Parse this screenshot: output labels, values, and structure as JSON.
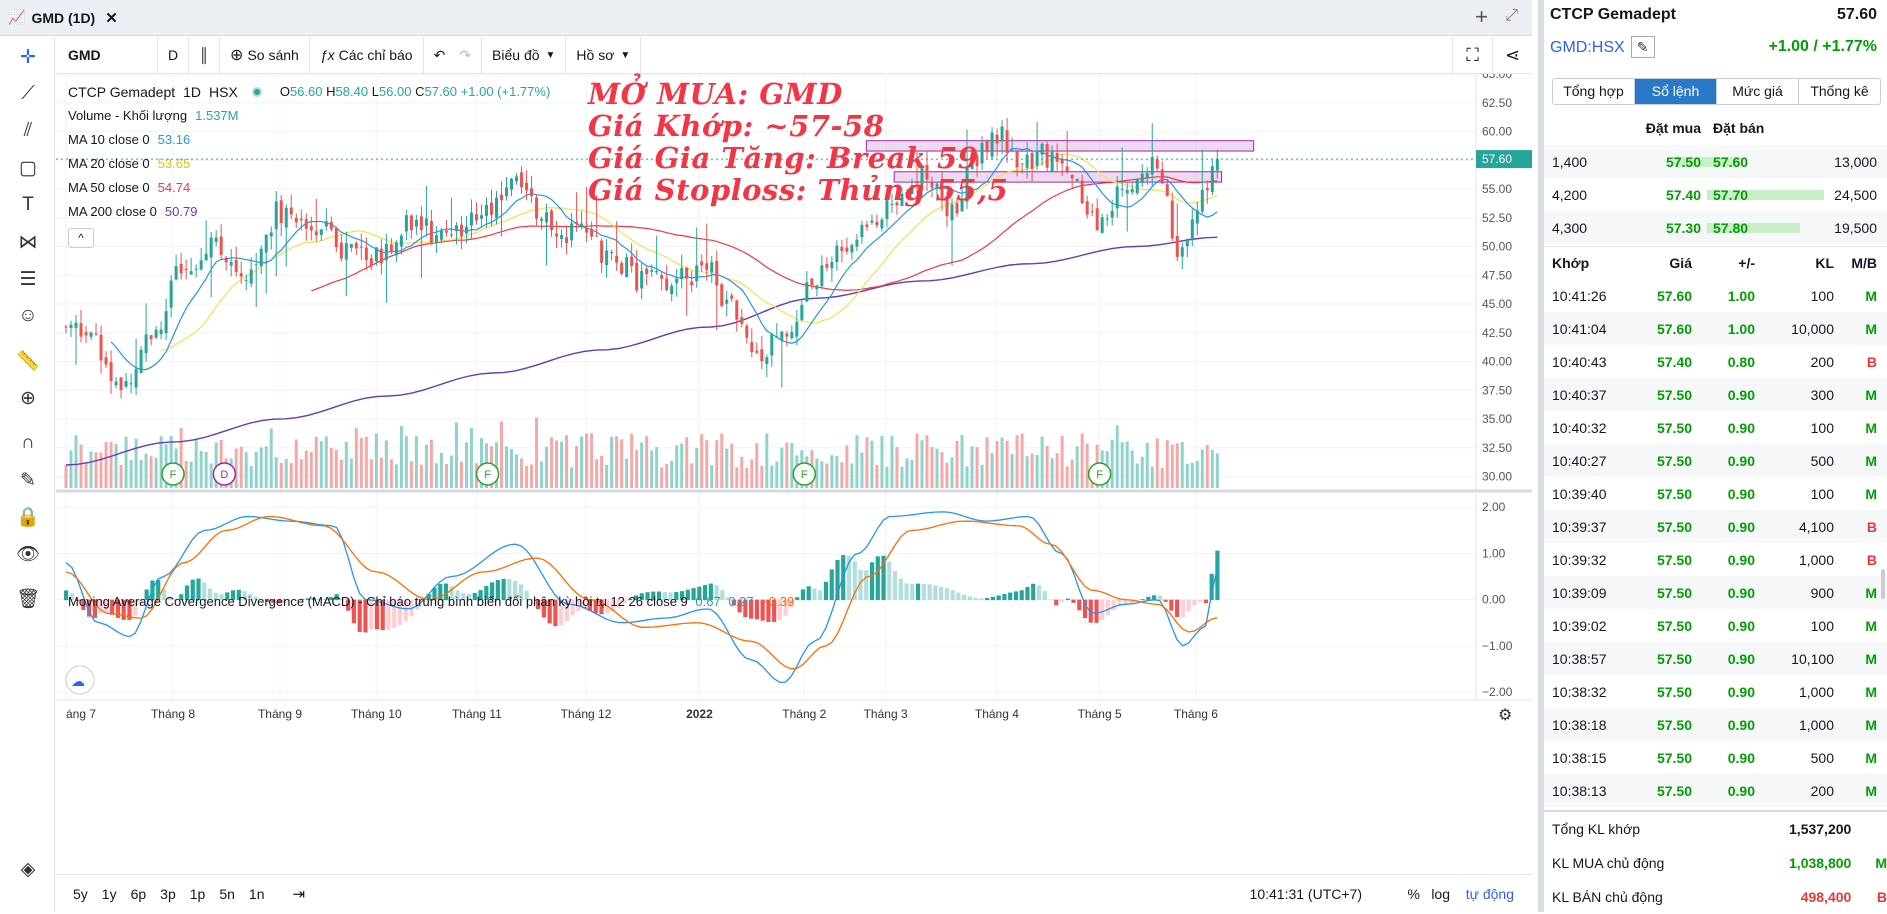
{
  "window": {
    "title": "GMD (1D)"
  },
  "toolbar": {
    "symbol": "GMD",
    "interval": "D",
    "compare": "So sánh",
    "indicators": "Các chỉ báo",
    "chart_type": "Biểu đồ",
    "profile": "Hồ sơ"
  },
  "legend": {
    "name": "CTCP Gemadept",
    "interval": "1D",
    "exchange": "HSX",
    "o_label": "O",
    "o": "56.60",
    "h_label": "H",
    "h": "58.40",
    "l_label": "L",
    "l": "56.00",
    "c_label": "C",
    "c": "57.60",
    "change": "+1.00 (+1.77%)",
    "volume_label": "Volume - Khối lượng",
    "volume": "1.537M",
    "ma": [
      {
        "label": "MA 10 close 0",
        "value": "53.16",
        "color": "#2196f3"
      },
      {
        "label": "MA 20 close 0",
        "value": "53.65",
        "color": "#f5d300"
      },
      {
        "label": "MA 50 close 0",
        "value": "54.74",
        "color": "#f23645"
      },
      {
        "label": "MA 200 close 0",
        "value": "50.79",
        "color": "#673ab7"
      }
    ],
    "collapse": "^"
  },
  "annotation": {
    "l1": "MỞ MUA: GMD",
    "l2": "Giá Khớp: ~57-58",
    "l3": "Giá Gia Tăng: Break 59",
    "l4": "Giá Stoploss: Thủng 55,5"
  },
  "macd": {
    "label": "Moving Average Covergence Divergence (MACD) - Chỉ báo trung bình biến đổi phân kỳ hội tụ 12 26 close 9",
    "v1": "0.67",
    "v2": "0.27",
    "v3": "−0.39"
  },
  "bottom": {
    "ranges": [
      "5y",
      "1y",
      "6p",
      "3p",
      "1p",
      "5n",
      "1n"
    ],
    "clock": "10:41:31 (UTC+7)",
    "pct": "%",
    "log": "log",
    "auto": "tự động"
  },
  "panel": {
    "title": "CTCP Gemadept",
    "price": "57.60",
    "symbol": "GMD:HSX",
    "change": "+1.00 / +1.77%",
    "tabs": [
      "Tổng hợp",
      "Sổ lệnh",
      "Mức giá",
      "Thống kê"
    ],
    "ob_head": {
      "bid": "Đặt mua",
      "ask": "Đặt bán"
    },
    "orderbook": [
      {
        "bv": "1,400",
        "bp": "57.50",
        "ap": "57.60",
        "av": "13,000",
        "bw": 0.35,
        "aw": 0.22
      },
      {
        "bv": "4,200",
        "bp": "57.40",
        "ap": "57.70",
        "av": "24,500",
        "bw": 0.0,
        "aw": 0.78
      },
      {
        "bv": "4,300",
        "bp": "57.30",
        "ap": "57.80",
        "av": "19,500",
        "bw": 0.0,
        "aw": 0.62
      }
    ],
    "trade_head": {
      "t": "Khớp",
      "p": "Giá",
      "c": "+/-",
      "v": "KL",
      "s": "M/B"
    },
    "trades": [
      {
        "t": "10:41:26",
        "p": "57.60",
        "c": "1.00",
        "v": "100",
        "s": "M"
      },
      {
        "t": "10:41:04",
        "p": "57.60",
        "c": "1.00",
        "v": "10,000",
        "s": "M"
      },
      {
        "t": "10:40:43",
        "p": "57.40",
        "c": "0.80",
        "v": "200",
        "s": "B"
      },
      {
        "t": "10:40:37",
        "p": "57.50",
        "c": "0.90",
        "v": "300",
        "s": "M"
      },
      {
        "t": "10:40:32",
        "p": "57.50",
        "c": "0.90",
        "v": "100",
        "s": "M"
      },
      {
        "t": "10:40:27",
        "p": "57.50",
        "c": "0.90",
        "v": "500",
        "s": "M"
      },
      {
        "t": "10:39:40",
        "p": "57.50",
        "c": "0.90",
        "v": "100",
        "s": "M"
      },
      {
        "t": "10:39:37",
        "p": "57.50",
        "c": "0.90",
        "v": "4,100",
        "s": "B"
      },
      {
        "t": "10:39:32",
        "p": "57.50",
        "c": "0.90",
        "v": "1,000",
        "s": "B"
      },
      {
        "t": "10:39:09",
        "p": "57.50",
        "c": "0.90",
        "v": "900",
        "s": "M"
      },
      {
        "t": "10:39:02",
        "p": "57.50",
        "c": "0.90",
        "v": "100",
        "s": "M"
      },
      {
        "t": "10:38:57",
        "p": "57.50",
        "c": "0.90",
        "v": "10,100",
        "s": "M"
      },
      {
        "t": "10:38:32",
        "p": "57.50",
        "c": "0.90",
        "v": "1,000",
        "s": "M"
      },
      {
        "t": "10:38:18",
        "p": "57.50",
        "c": "0.90",
        "v": "1,000",
        "s": "M"
      },
      {
        "t": "10:38:15",
        "p": "57.50",
        "c": "0.90",
        "v": "500",
        "s": "M"
      },
      {
        "t": "10:38:13",
        "p": "57.50",
        "c": "0.90",
        "v": "200",
        "s": "M"
      }
    ],
    "summary": [
      {
        "label": "Tổng KL khớp",
        "value": "1,537,200",
        "mb": "",
        "color": "#131722"
      },
      {
        "label": "KL MUA chủ động",
        "value": "1,038,800",
        "mb": "M",
        "color": "#00a000"
      },
      {
        "label": "KL BÁN chủ động",
        "value": "498,400",
        "mb": "B",
        "color": "#e53935"
      }
    ]
  },
  "chart_data": {
    "type": "candlestick",
    "price_ticks": [
      "65.00",
      "62.50",
      "60.00",
      "57.50",
      "55.00",
      "52.50",
      "50.00",
      "47.50",
      "45.00",
      "42.50",
      "40.00",
      "37.50",
      "35.00",
      "32.50",
      "30.00"
    ],
    "price_range": [
      29,
      65
    ],
    "last_price": "57.60",
    "macd_ticks": [
      "2.00",
      "1.00",
      "0.00",
      "−1.00",
      "−2.00"
    ],
    "macd_range": [
      -2.15,
      2.2
    ],
    "x_labels": [
      "áng 7",
      "Tháng 8",
      "Tháng 9",
      "Tháng 10",
      "Tháng 11",
      "Tháng 12",
      "2022",
      "Tháng 2",
      "Tháng 3",
      "Tháng 4",
      "Tháng 5",
      "Tháng 6"
    ],
    "x_label_pos": [
      0,
      0.5,
      1.0,
      1.45,
      1.92,
      2.43,
      2.96,
      3.45,
      3.83,
      4.35,
      4.83,
      5.28
    ],
    "events": [
      {
        "m": 0.5,
        "label": "F"
      },
      {
        "m": 0.74,
        "label": "D"
      },
      {
        "m": 1.97,
        "label": "F"
      },
      {
        "m": 3.45,
        "label": "F"
      },
      {
        "m": 4.83,
        "label": "F"
      }
    ],
    "zones": [
      {
        "m1": 3.74,
        "m2": 5.55,
        "low": 58.3,
        "high": 59.2
      },
      {
        "m1": 3.87,
        "m2": 5.4,
        "low": 55.6,
        "high": 56.5
      }
    ],
    "close_anchors": [
      [
        0,
        43
      ],
      [
        0.1,
        43
      ],
      [
        0.25,
        38
      ],
      [
        0.4,
        42
      ],
      [
        0.55,
        48
      ],
      [
        0.7,
        50
      ],
      [
        0.85,
        48
      ],
      [
        1.0,
        53
      ],
      [
        1.15,
        52
      ],
      [
        1.3,
        50
      ],
      [
        1.45,
        49
      ],
      [
        1.6,
        52
      ],
      [
        1.75,
        51
      ],
      [
        1.9,
        52
      ],
      [
        2.1,
        56
      ],
      [
        2.25,
        52
      ],
      [
        2.4,
        51
      ],
      [
        2.55,
        49
      ],
      [
        2.7,
        47
      ],
      [
        2.85,
        47
      ],
      [
        3.0,
        48
      ],
      [
        3.1,
        45
      ],
      [
        3.25,
        41
      ],
      [
        3.35,
        42
      ],
      [
        3.5,
        47
      ],
      [
        3.6,
        49
      ],
      [
        3.75,
        52
      ],
      [
        3.85,
        53
      ],
      [
        4.0,
        56
      ],
      [
        4.15,
        53
      ],
      [
        4.25,
        58
      ],
      [
        4.35,
        60
      ],
      [
        4.45,
        57
      ],
      [
        4.55,
        58
      ],
      [
        4.7,
        56
      ],
      [
        4.8,
        52
      ],
      [
        4.95,
        55
      ],
      [
        5.1,
        57
      ],
      [
        5.2,
        50
      ],
      [
        5.3,
        54
      ],
      [
        5.38,
        57.6
      ]
    ],
    "ma200_anchors": [
      [
        0,
        31
      ],
      [
        0.5,
        33
      ],
      [
        1.0,
        35
      ],
      [
        1.5,
        37
      ],
      [
        2.0,
        39
      ],
      [
        2.5,
        41
      ],
      [
        3.0,
        43
      ],
      [
        3.5,
        45.5
      ],
      [
        4.0,
        47
      ],
      [
        4.5,
        48.5
      ],
      [
        5.0,
        50
      ],
      [
        5.38,
        50.8
      ]
    ],
    "macd_anchors": [
      [
        0,
        0.8
      ],
      [
        0.15,
        -0.5
      ],
      [
        0.3,
        -0.8
      ],
      [
        0.45,
        0.5
      ],
      [
        0.65,
        1.5
      ],
      [
        0.85,
        1.8
      ],
      [
        1.05,
        1.7
      ],
      [
        1.25,
        1.6
      ],
      [
        1.4,
        0.0
      ],
      [
        1.6,
        -0.2
      ],
      [
        1.8,
        0.5
      ],
      [
        2.1,
        1.2
      ],
      [
        2.35,
        -0.1
      ],
      [
        2.6,
        -0.5
      ],
      [
        2.8,
        -0.4
      ],
      [
        3.0,
        -0.2
      ],
      [
        3.2,
        -1.3
      ],
      [
        3.35,
        -1.8
      ],
      [
        3.5,
        -0.9
      ],
      [
        3.7,
        1.0
      ],
      [
        3.85,
        1.8
      ],
      [
        4.1,
        1.9
      ],
      [
        4.3,
        1.7
      ],
      [
        4.5,
        1.8
      ],
      [
        4.65,
        1.0
      ],
      [
        4.8,
        -0.3
      ],
      [
        4.95,
        -0.1
      ],
      [
        5.1,
        0.0
      ],
      [
        5.22,
        -1.0
      ],
      [
        5.32,
        -0.6
      ],
      [
        5.38,
        0.67
      ]
    ],
    "signal_anchors": [
      [
        0,
        0.6
      ],
      [
        0.2,
        -0.3
      ],
      [
        0.35,
        -0.4
      ],
      [
        0.55,
        0.8
      ],
      [
        0.75,
        1.5
      ],
      [
        0.95,
        1.8
      ],
      [
        1.2,
        1.6
      ],
      [
        1.45,
        0.6
      ],
      [
        1.7,
        0.0
      ],
      [
        1.95,
        0.6
      ],
      [
        2.2,
        0.9
      ],
      [
        2.45,
        0.0
      ],
      [
        2.7,
        -0.6
      ],
      [
        2.95,
        -0.5
      ],
      [
        3.2,
        -0.9
      ],
      [
        3.4,
        -1.5
      ],
      [
        3.55,
        -1.0
      ],
      [
        3.75,
        0.5
      ],
      [
        3.95,
        1.5
      ],
      [
        4.2,
        1.7
      ],
      [
        4.45,
        1.6
      ],
      [
        4.6,
        1.2
      ],
      [
        4.8,
        0.2
      ],
      [
        4.95,
        0.0
      ],
      [
        5.1,
        -0.1
      ],
      [
        5.25,
        -0.7
      ],
      [
        5.38,
        -0.39
      ]
    ]
  }
}
